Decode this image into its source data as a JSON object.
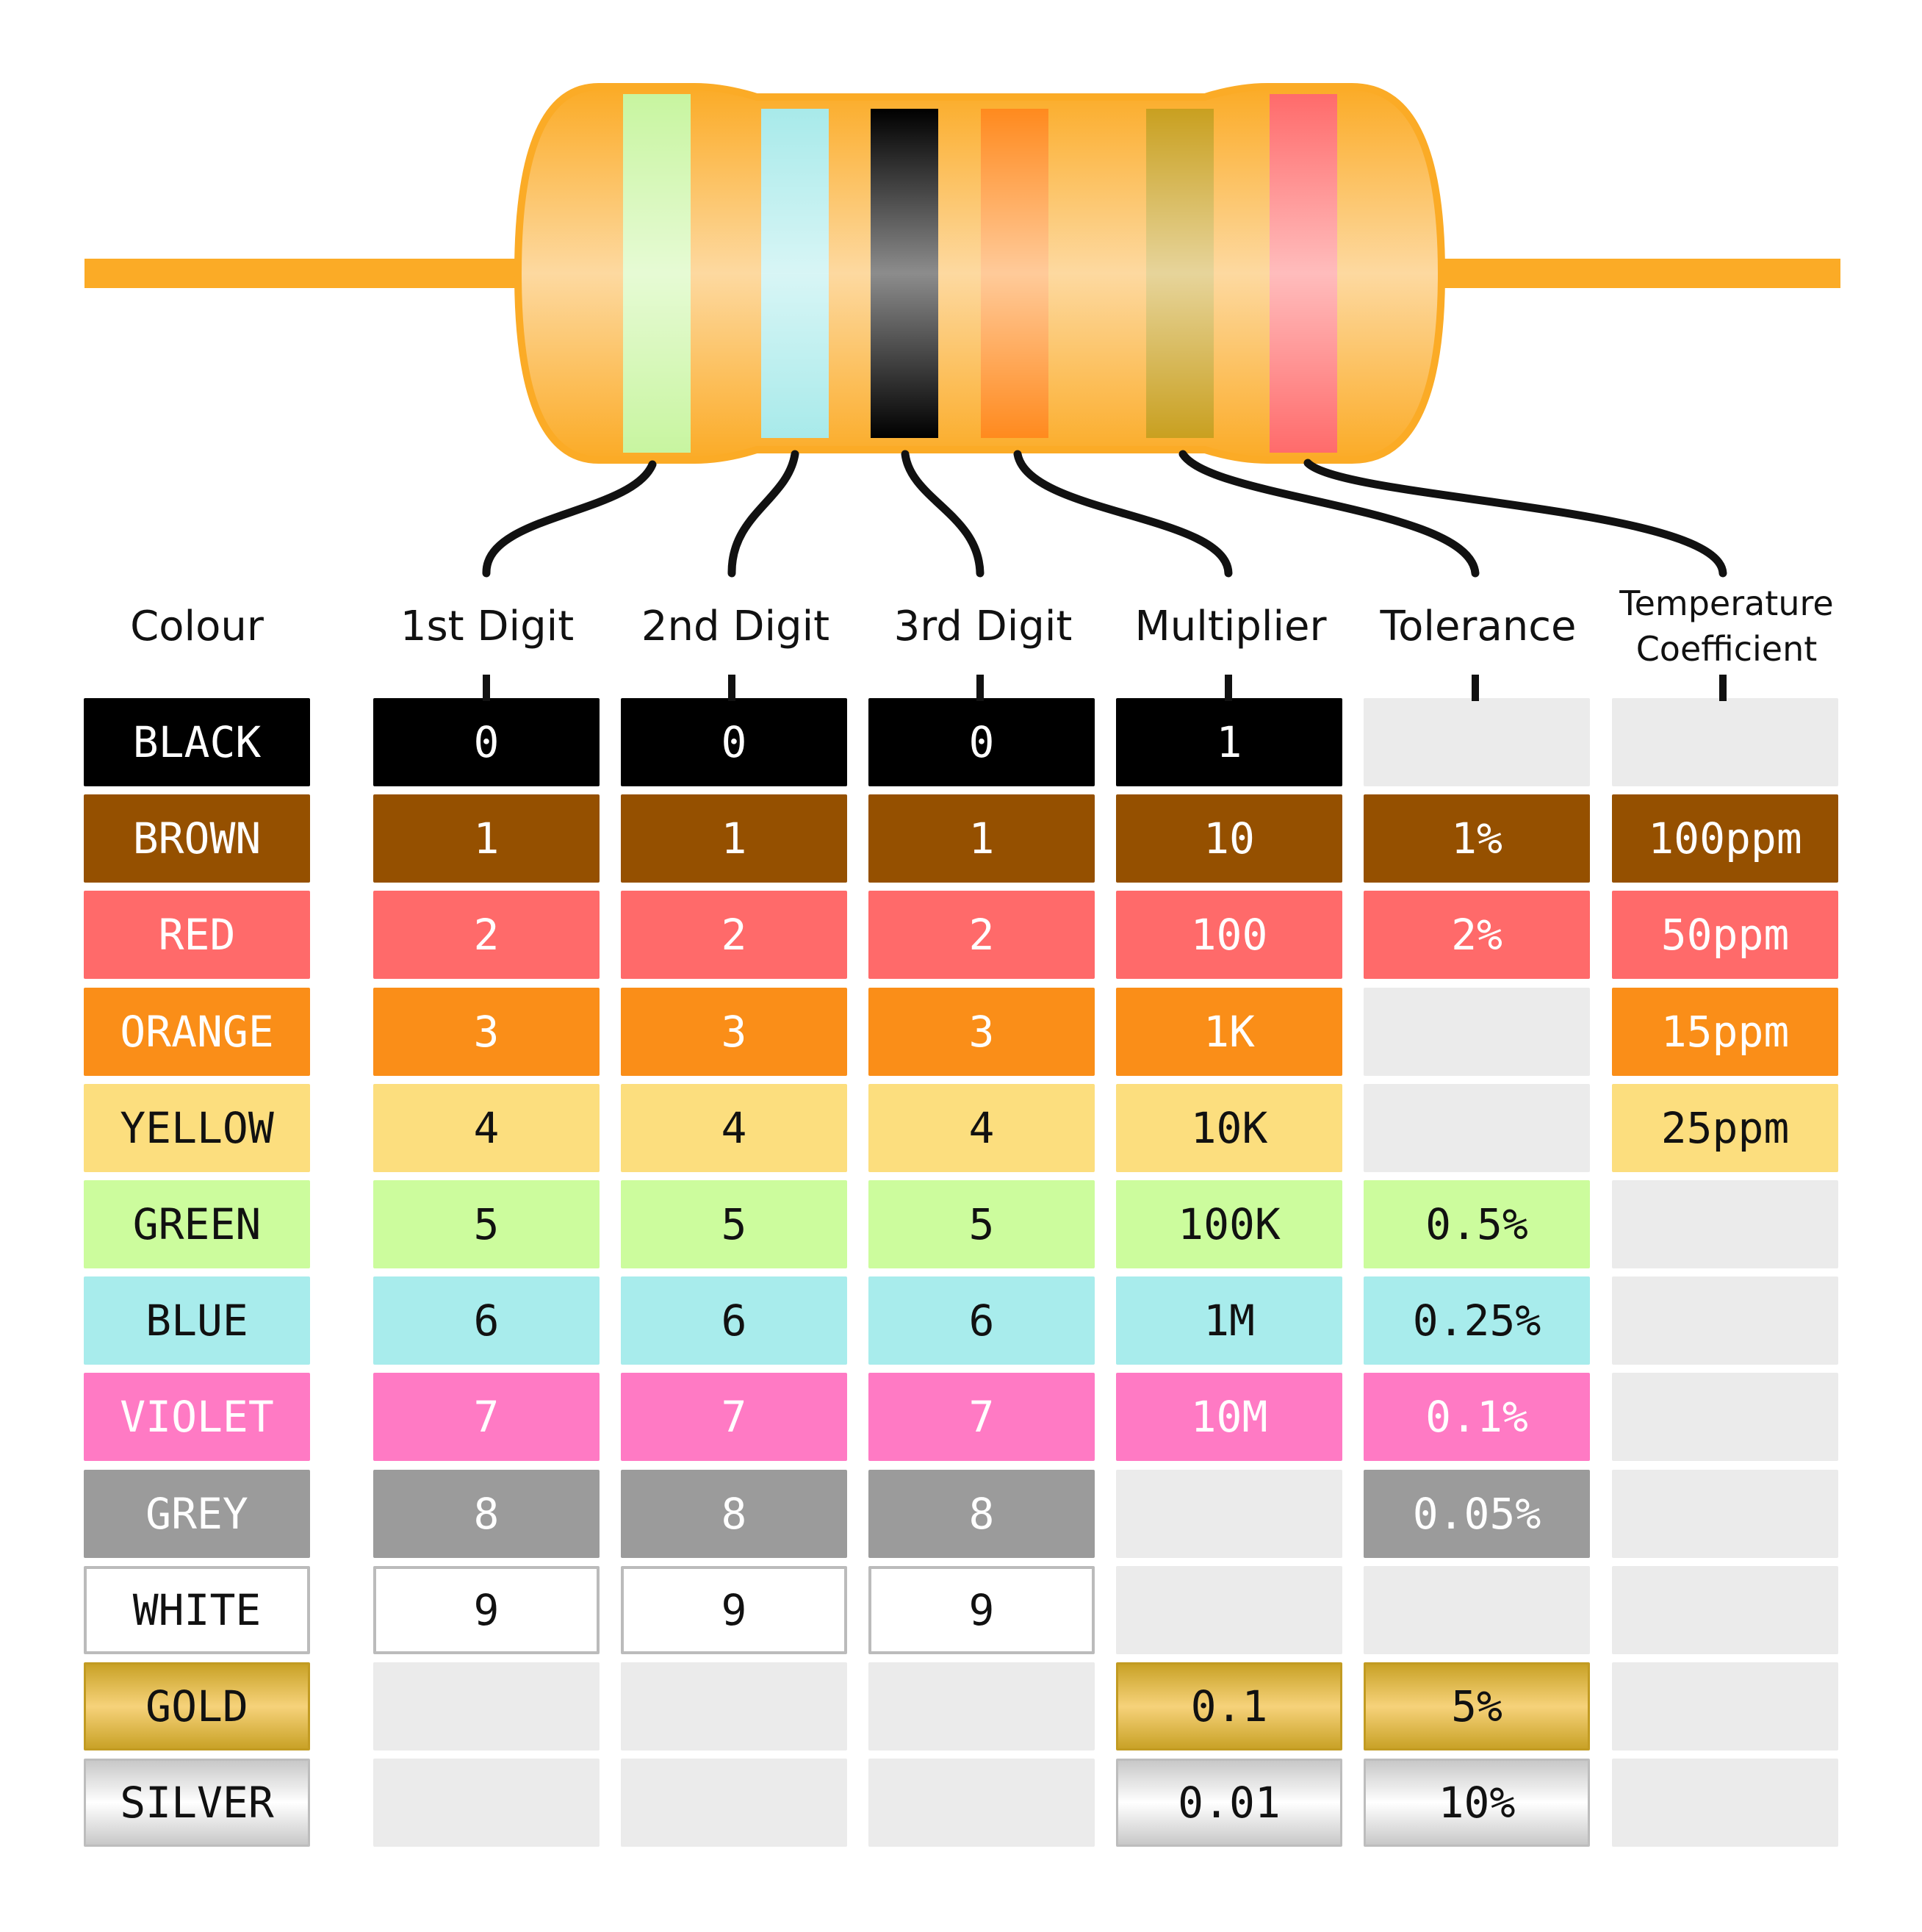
{
  "headers": {
    "colour": "Colour",
    "digit1": "1st Digit",
    "digit2": "2nd Digit",
    "digit3": "3rd Digit",
    "multiplier": "Multiplier",
    "tolerance": "Tolerance",
    "temp_line1": "Temperature",
    "temp_line2": "Coefficient"
  },
  "resistor": {
    "body_color": "#fbab26",
    "lead_color": "#fbab26",
    "bands": [
      {
        "name": "green",
        "color": "#c8f5a0"
      },
      {
        "name": "blue",
        "color": "#a8eaea"
      },
      {
        "name": "black",
        "color": "#000000"
      },
      {
        "name": "orange",
        "color": "#ff8a1e"
      },
      {
        "name": "gold",
        "color": "#c9a020"
      },
      {
        "name": "red",
        "color": "#ff6b6b"
      }
    ]
  },
  "rows": [
    {
      "label": "BLACK",
      "bg": "#000000",
      "fg": "#ffffff",
      "style": "solid",
      "d1": "0",
      "d2": "0",
      "d3": "0",
      "mult": "1",
      "tol": "",
      "temp": ""
    },
    {
      "label": "BROWN",
      "bg": "#955000",
      "fg": "#ffffff",
      "style": "solid",
      "d1": "1",
      "d2": "1",
      "d3": "1",
      "mult": "10",
      "tol": "1%",
      "temp": "100ppm"
    },
    {
      "label": "RED",
      "bg": "#ff6a6a",
      "fg": "#ffffff",
      "style": "solid",
      "d1": "2",
      "d2": "2",
      "d3": "2",
      "mult": "100",
      "tol": "2%",
      "temp": "50ppm"
    },
    {
      "label": "ORANGE",
      "bg": "#fa8e18",
      "fg": "#ffffff",
      "style": "solid",
      "d1": "3",
      "d2": "3",
      "d3": "3",
      "mult": "1K",
      "tol": "",
      "temp": "15ppm"
    },
    {
      "label": "YELLOW",
      "bg": "#fcde7e",
      "fg": "#111111",
      "style": "solid",
      "d1": "4",
      "d2": "4",
      "d3": "4",
      "mult": "10K",
      "tol": "",
      "temp": "25ppm"
    },
    {
      "label": "GREEN",
      "bg": "#ccfc9d",
      "fg": "#111111",
      "style": "solid",
      "d1": "5",
      "d2": "5",
      "d3": "5",
      "mult": "100K",
      "tol": "0.5%",
      "temp": ""
    },
    {
      "label": "BLUE",
      "bg": "#a8ecec",
      "fg": "#111111",
      "style": "solid",
      "d1": "6",
      "d2": "6",
      "d3": "6",
      "mult": "1M",
      "tol": "0.25%",
      "temp": ""
    },
    {
      "label": "VIOLET",
      "bg": "#ff7ac4",
      "fg": "#ffffff",
      "style": "solid",
      "d1": "7",
      "d2": "7",
      "d3": "7",
      "mult": "10M",
      "tol": "0.1%",
      "temp": ""
    },
    {
      "label": "GREY",
      "bg": "#9b9b9b",
      "fg": "#ffffff",
      "style": "solid",
      "d1": "8",
      "d2": "8",
      "d3": "8",
      "mult": "",
      "tol": "0.05%",
      "temp": ""
    },
    {
      "label": "WHITE",
      "bg": "#ffffff",
      "fg": "#111111",
      "style": "white",
      "d1": "9",
      "d2": "9",
      "d3": "9",
      "mult": "",
      "tol": "",
      "temp": ""
    },
    {
      "label": "GOLD",
      "bg": "#e3b84a",
      "fg": "#111111",
      "style": "gold",
      "d1": "",
      "d2": "",
      "d3": "",
      "mult": "0.1",
      "tol": "5%",
      "temp": ""
    },
    {
      "label": "SILVER",
      "bg": "#e0e0e0",
      "fg": "#111111",
      "style": "silver",
      "d1": "",
      "d2": "",
      "d3": "",
      "mult": "0.01",
      "tol": "10%",
      "temp": ""
    }
  ]
}
